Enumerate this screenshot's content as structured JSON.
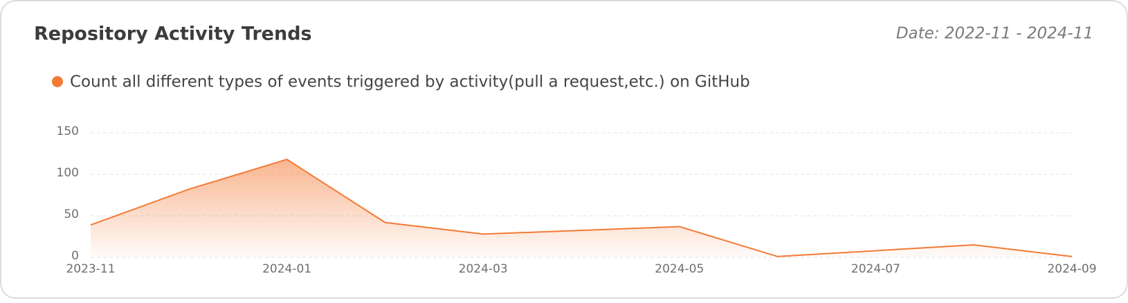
{
  "chart_data": {
    "type": "line",
    "title": "Repository Activity Trends",
    "subtitle": "Date: 2022-11 - 2024-11",
    "x": [
      "2023-11",
      "2023-12",
      "2024-01",
      "2024-02",
      "2024-03",
      "2024-05",
      "2024-06",
      "2024-08",
      "2024-09"
    ],
    "series": [
      {
        "name": "Count all different types of events triggered by activity(pull a request,etc.) on GitHub",
        "color": "#f47a35",
        "values": [
          39,
          82,
          118,
          42,
          28,
          37,
          1,
          15,
          1
        ]
      }
    ],
    "xlim": [
      "2023-11",
      "2024-09"
    ],
    "xticks": [
      "2023-11",
      "2024-01",
      "2024-03",
      "2024-05",
      "2024-07",
      "2024-09"
    ],
    "ylim": [
      0,
      150
    ],
    "yticks": [
      0,
      50,
      100,
      150
    ],
    "grid": true,
    "area": true
  }
}
